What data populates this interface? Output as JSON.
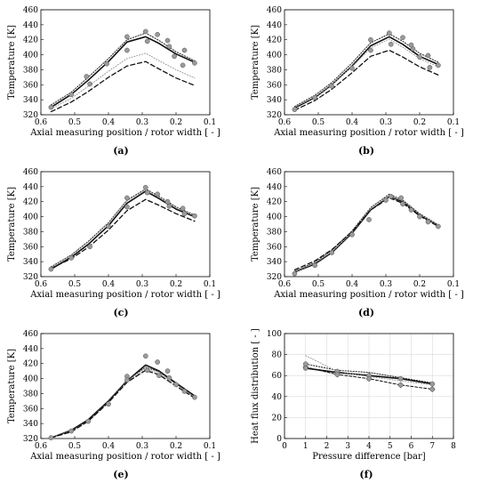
{
  "figure": {
    "panels": [
      {
        "caption": "(a)"
      },
      {
        "caption": "(b)"
      },
      {
        "caption": "(c)"
      },
      {
        "caption": "(d)"
      },
      {
        "caption": "(e)"
      },
      {
        "caption": "(f)"
      }
    ]
  },
  "chart_data": [
    {
      "panel": "(a)",
      "type": "line",
      "xlabel": "Axial measuring position / rotor width [ - ]",
      "ylabel": "Temperature [K]",
      "xlim": [
        0.6,
        0.1
      ],
      "ylim": [
        320,
        460
      ],
      "xticks": [
        "0.6",
        "0.5",
        "0.4",
        "0.3",
        "0.2",
        "0.1"
      ],
      "yticks": [
        "320",
        "340",
        "360",
        "380",
        "400",
        "420",
        "440",
        "460"
      ],
      "grid": false,
      "x": [
        0.57,
        0.51,
        0.46,
        0.4,
        0.345,
        0.29,
        0.25,
        0.2,
        0.145
      ],
      "series": [
        {
          "style": "solid",
          "values": [
            330,
            347,
            366,
            391,
            417,
            424,
            415,
            401,
            390
          ]
        },
        {
          "style": "dotted-dark",
          "values": [
            333,
            350,
            370,
            395,
            420,
            429,
            419,
            404,
            392
          ]
        },
        {
          "style": "dotted-light",
          "values": [
            328,
            342,
            358,
            378,
            395,
            402,
            392,
            380,
            369
          ]
        },
        {
          "style": "dashed",
          "values": [
            324,
            337,
            351,
            370,
            385,
            391,
            381,
            369,
            359
          ]
        },
        {
          "style": "markers",
          "points": [
            [
              0.57,
              330
            ],
            [
              0.51,
              347
            ],
            [
              0.465,
              371
            ],
            [
              0.455,
              361
            ],
            [
              0.405,
              388
            ],
            [
              0.345,
              424
            ],
            [
              0.345,
              406
            ],
            [
              0.29,
              431
            ],
            [
              0.285,
              418
            ],
            [
              0.255,
              427
            ],
            [
              0.225,
              419
            ],
            [
              0.22,
              411
            ],
            [
              0.205,
              398
            ],
            [
              0.18,
              386
            ],
            [
              0.175,
              406
            ],
            [
              0.145,
              389
            ]
          ]
        }
      ]
    },
    {
      "panel": "(b)",
      "type": "line",
      "xlabel": "Axial measuring position / rotor width [ - ]",
      "ylabel": "Temperature [K]",
      "xlim": [
        0.6,
        0.1
      ],
      "ylim": [
        320,
        460
      ],
      "xticks": [
        "0.6",
        "0.5",
        "0.4",
        "0.3",
        "0.2",
        "0.1"
      ],
      "yticks": [
        "320",
        "340",
        "360",
        "380",
        "400",
        "420",
        "440",
        "460"
      ],
      "grid": false,
      "x": [
        0.57,
        0.51,
        0.46,
        0.4,
        0.345,
        0.29,
        0.25,
        0.2,
        0.145
      ],
      "series": [
        {
          "style": "solid",
          "values": [
            329,
            343,
            360,
            385,
            412,
            424,
            414,
            398,
            387
          ]
        },
        {
          "style": "dotted-dark",
          "values": [
            331,
            346,
            363,
            389,
            416,
            428,
            418,
            402,
            390
          ]
        },
        {
          "style": "dotted-light",
          "values": [
            330,
            344,
            360,
            384,
            409,
            421,
            410,
            395,
            384
          ]
        },
        {
          "style": "dashed",
          "values": [
            326,
            339,
            354,
            376,
            398,
            406,
            397,
            384,
            373
          ]
        },
        {
          "style": "markers",
          "points": [
            [
              0.57,
              327
            ],
            [
              0.51,
              343
            ],
            [
              0.46,
              358
            ],
            [
              0.4,
              382
            ],
            [
              0.345,
              420
            ],
            [
              0.345,
              406
            ],
            [
              0.29,
              429
            ],
            [
              0.285,
              414
            ],
            [
              0.25,
              423
            ],
            [
              0.225,
              413
            ],
            [
              0.22,
              408
            ],
            [
              0.2,
              397
            ],
            [
              0.175,
              399
            ],
            [
              0.17,
              383
            ],
            [
              0.145,
              386
            ]
          ]
        }
      ]
    },
    {
      "panel": "(c)",
      "type": "line",
      "xlabel": "Axial measuring position / rotor width [ - ]",
      "ylabel": "Temperature [K]",
      "xlim": [
        0.6,
        0.1
      ],
      "ylim": [
        320,
        460
      ],
      "xticks": [
        "0.6",
        "0.5",
        "0.4",
        "0.3",
        "0.2",
        "0.1"
      ],
      "yticks": [
        "320",
        "340",
        "360",
        "380",
        "400",
        "420",
        "440",
        "460"
      ],
      "grid": false,
      "x": [
        0.57,
        0.51,
        0.46,
        0.4,
        0.345,
        0.29,
        0.25,
        0.2,
        0.145
      ],
      "series": [
        {
          "style": "solid",
          "values": [
            330,
            346,
            363,
            388,
            418,
            434,
            424,
            410,
            400
          ]
        },
        {
          "style": "dotted-dark",
          "values": [
            333,
            349,
            367,
            392,
            422,
            437,
            427,
            413,
            402
          ]
        },
        {
          "style": "dotted-light",
          "values": [
            332,
            348,
            366,
            391,
            421,
            436,
            426,
            412,
            401
          ]
        },
        {
          "style": "dashed",
          "values": [
            331,
            344,
            359,
            382,
            408,
            423,
            415,
            404,
            394
          ]
        },
        {
          "style": "markers",
          "points": [
            [
              0.57,
              330
            ],
            [
              0.51,
              345
            ],
            [
              0.455,
              360
            ],
            [
              0.4,
              387
            ],
            [
              0.345,
              425
            ],
            [
              0.345,
              413
            ],
            [
              0.29,
              439
            ],
            [
              0.285,
              432
            ],
            [
              0.255,
              430
            ],
            [
              0.225,
              420
            ],
            [
              0.22,
              414
            ],
            [
              0.18,
              411
            ],
            [
              0.175,
              404
            ],
            [
              0.145,
              401
            ]
          ]
        }
      ]
    },
    {
      "panel": "(d)",
      "type": "line",
      "xlabel": "Axial measuring position / rotor width [ - ]",
      "ylabel": "Temperature [K]",
      "xlim": [
        0.6,
        0.1
      ],
      "ylim": [
        320,
        460
      ],
      "xticks": [
        "0.6",
        "0.5",
        "0.4",
        "0.3",
        "0.2",
        "0.1"
      ],
      "yticks": [
        "320",
        "340",
        "360",
        "380",
        "400",
        "420",
        "440",
        "460"
      ],
      "grid": false,
      "x": [
        0.57,
        0.51,
        0.46,
        0.4,
        0.345,
        0.29,
        0.25,
        0.2,
        0.145
      ],
      "series": [
        {
          "style": "solid",
          "values": [
            326,
            337,
            352,
            378,
            409,
            427,
            420,
            402,
            388
          ]
        },
        {
          "style": "dotted-dark",
          "values": [
            327,
            339,
            355,
            381,
            412,
            430,
            422,
            404,
            389
          ]
        },
        {
          "style": "dotted-light",
          "values": [
            326,
            338,
            353,
            379,
            410,
            428,
            421,
            403,
            388
          ]
        },
        {
          "style": "dashed",
          "values": [
            329,
            341,
            356,
            380,
            409,
            425,
            418,
            401,
            387
          ]
        },
        {
          "style": "markers",
          "points": [
            [
              0.57,
              324
            ],
            [
              0.51,
              335
            ],
            [
              0.46,
              352
            ],
            [
              0.4,
              376
            ],
            [
              0.35,
              396
            ],
            [
              0.3,
              422
            ],
            [
              0.285,
              427
            ],
            [
              0.255,
              425
            ],
            [
              0.25,
              417
            ],
            [
              0.225,
              409
            ],
            [
              0.2,
              400
            ],
            [
              0.175,
              393
            ],
            [
              0.145,
              387
            ]
          ]
        }
      ]
    },
    {
      "panel": "(e)",
      "type": "line",
      "xlabel": "Axial measuring position / rotor width [ - ]",
      "ylabel": "Temperature [K]",
      "xlim": [
        0.6,
        0.1
      ],
      "ylim": [
        320,
        460
      ],
      "xticks": [
        "0.6",
        "0.5",
        "0.4",
        "0.3",
        "0.2",
        "0.1"
      ],
      "yticks": [
        "320",
        "340",
        "360",
        "380",
        "400",
        "420",
        "440",
        "460"
      ],
      "grid": false,
      "x": [
        0.57,
        0.51,
        0.46,
        0.4,
        0.345,
        0.29,
        0.25,
        0.2,
        0.145
      ],
      "series": [
        {
          "style": "solid",
          "values": [
            321,
            331,
            345,
            370,
            397,
            418,
            410,
            394,
            377
          ]
        },
        {
          "style": "dotted-dark",
          "values": [
            321,
            330,
            344,
            369,
            398,
            415,
            409,
            393,
            376
          ]
        },
        {
          "style": "dotted-light",
          "values": [
            321,
            330,
            343,
            368,
            396,
            413,
            407,
            392,
            375
          ]
        },
        {
          "style": "dashed",
          "values": [
            321,
            329,
            343,
            368,
            395,
            411,
            405,
            390,
            374
          ]
        },
        {
          "style": "markers",
          "points": [
            [
              0.57,
              321
            ],
            [
              0.51,
              330
            ],
            [
              0.46,
              343
            ],
            [
              0.4,
              366
            ],
            [
              0.345,
              403
            ],
            [
              0.345,
              398
            ],
            [
              0.29,
              430
            ],
            [
              0.285,
              411
            ],
            [
              0.255,
              422
            ],
            [
              0.25,
              404
            ],
            [
              0.225,
              410
            ],
            [
              0.22,
              401
            ],
            [
              0.2,
              392
            ],
            [
              0.175,
              383
            ],
            [
              0.145,
              375
            ]
          ]
        }
      ]
    },
    {
      "panel": "(f)",
      "type": "line",
      "xlabel": "Pressure difference [bar]",
      "ylabel": "Heat flux distribution [ - ]",
      "xlim": [
        0,
        8
      ],
      "ylim": [
        0,
        100
      ],
      "xticks": [
        "0",
        "1",
        "2",
        "3",
        "4",
        "5",
        "6",
        "7",
        "8"
      ],
      "yticks": [
        "0",
        "20",
        "40",
        "60",
        "80",
        "100"
      ],
      "grid": true,
      "series": [
        {
          "style": "solid",
          "x": [
            1,
            2.5,
            4,
            5.5,
            7
          ],
          "values": [
            67,
            63,
            60,
            57,
            52
          ]
        },
        {
          "style": "dotted-dark",
          "x": [
            1,
            2.5,
            4,
            5.5,
            7
          ],
          "values": [
            71,
            65,
            63,
            58,
            53
          ]
        },
        {
          "style": "dotted-light",
          "x": [
            1,
            2.5,
            4,
            5.5,
            7
          ],
          "values": [
            79,
            64,
            59,
            55,
            51
          ]
        },
        {
          "style": "dashed-diamond",
          "x": [
            1,
            2.5,
            4,
            5.5,
            7
          ],
          "values": [
            68,
            61,
            57,
            51,
            47
          ]
        },
        {
          "style": "markers",
          "points": [
            [
              1,
              71
            ],
            [
              1,
              67
            ],
            [
              2.5,
              64
            ],
            [
              2.5,
              61
            ],
            [
              4,
              60
            ],
            [
              4,
              57
            ],
            [
              5.5,
              57
            ],
            [
              5.5,
              51
            ],
            [
              7,
              52
            ],
            [
              7,
              47
            ]
          ]
        }
      ]
    }
  ]
}
